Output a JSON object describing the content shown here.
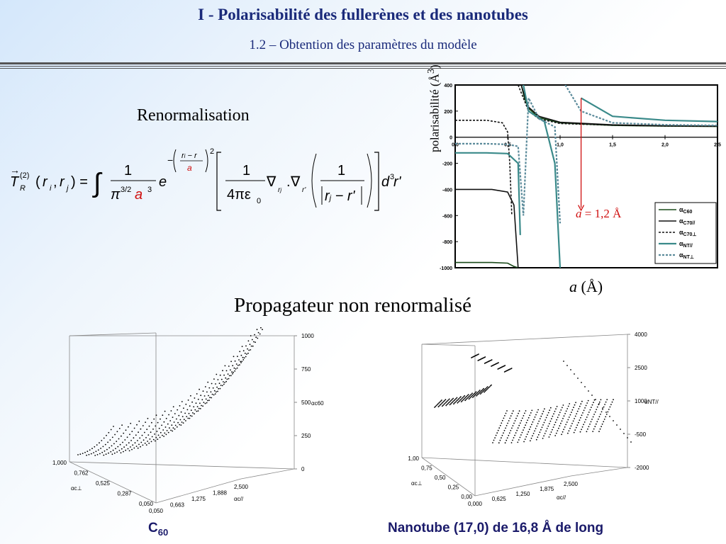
{
  "header": {
    "title": "I  - Polarisabilité des fullerènes et des nanotubes",
    "subtitle": "1.2 – Obtention des paramètres du modèle"
  },
  "left": {
    "renorm_label": "Renormalisation",
    "propagateur_label": "Propagateur non renormalisé",
    "formula": {
      "lhs_T": "T",
      "lhs_sup": "(2)",
      "lhs_sub": "R",
      "lhs_args": "(r",
      "int": "∫",
      "frac1_num": "1",
      "frac1_den_pi": "π",
      "frac1_den_exp": "3/2",
      "frac1_den_a": "a",
      "frac1_den_a_exp": "3",
      "exp_e": "e",
      "exp_minus": "−",
      "exp_frac_num": "r",
      "exp_frac_den": "a",
      "exp_power": "2",
      "frac2_num": "1",
      "frac2_den": "4πε",
      "frac2_den_sub": "0",
      "nabla": "∇",
      "frac3_num": "1",
      "d3r": "d",
      "d3r_exp": "3"
    }
  },
  "right_chart": {
    "ylabel": "polarisabilité (Å",
    "ylabel_sup": "3",
    "ylabel_close": ")",
    "xlabel_a": "a",
    "xlabel_unit": "(Å)",
    "annotation_a": "a",
    "annotation_value": "= 1,2 Å",
    "annotation_color": "#d01010",
    "legend": [
      {
        "sym": "α",
        "sub": "C60"
      },
      {
        "sym": "α",
        "sub": "C70//"
      },
      {
        "sym": "α",
        "sub": "C70⊥"
      },
      {
        "sym": "α",
        "sub": "NT//"
      },
      {
        "sym": "α",
        "sub": "NT⊥"
      }
    ]
  },
  "chart_data": [
    {
      "type": "line",
      "xlabel": "a (Å)",
      "ylabel": "polarisabilité (Å3)",
      "xlim": [
        0,
        2.5
      ],
      "ylim": [
        -1000,
        400
      ],
      "x_ticks": [
        "0,0",
        "0,5",
        "1,0",
        "1,5",
        "2,0",
        "2,5"
      ],
      "y_ticks": [
        "400",
        "200",
        "0",
        "-200",
        "-400",
        "-600",
        "-800",
        "-1000"
      ],
      "series": [
        {
          "name": "αC60",
          "color": "#1a4a1a",
          "style": "solid",
          "x": [
            0.0,
            0.35,
            0.5,
            0.56,
            0.6,
            0.63,
            0.66,
            0.7,
            0.8,
            1.0,
            1.5,
            2.0,
            2.5
          ],
          "y": [
            -960,
            -960,
            -965,
            -990,
            -1000,
            400,
            300,
            220,
            150,
            110,
            90,
            85,
            82
          ]
        },
        {
          "name": "αC70//",
          "color": "#111111",
          "style": "solid",
          "x": [
            0.0,
            0.35,
            0.5,
            0.56,
            0.6,
            0.63,
            0.66,
            0.7,
            0.8,
            1.0,
            1.5,
            2.0,
            2.5
          ],
          "y": [
            -400,
            -400,
            -420,
            -520,
            -1000,
            400,
            320,
            230,
            160,
            115,
            95,
            88,
            85
          ]
        },
        {
          "name": "αC70⊥",
          "color": "#111111",
          "style": "dotted",
          "x": [
            0.0,
            0.3,
            0.45,
            0.5,
            0.52,
            0.54,
            0.6,
            0.7,
            0.8,
            1.0,
            1.5,
            2.0,
            2.5
          ],
          "y": [
            130,
            130,
            110,
            40,
            -200,
            -600,
            400,
            200,
            140,
            105,
            92,
            86,
            84
          ]
        },
        {
          "name": "αNT//",
          "color": "#3a8a8a",
          "style": "solid",
          "x": [
            0.0,
            0.3,
            0.5,
            0.6,
            0.62,
            0.65,
            0.7,
            0.85,
            0.95,
            1.0,
            1.2,
            1.5,
            2.0,
            2.5
          ],
          "y": [
            -120,
            -120,
            -125,
            -200,
            -750,
            400,
            200,
            120,
            -200,
            -1000,
            300,
            160,
            130,
            120
          ]
        },
        {
          "name": "αNT⊥",
          "color": "#5a8a9a",
          "style": "dotted",
          "x": [
            0.0,
            0.3,
            0.5,
            0.6,
            0.65,
            0.7,
            0.8,
            0.95,
            1.0,
            1.05,
            1.2,
            1.5,
            2.0,
            2.5
          ],
          "y": [
            -50,
            -50,
            -55,
            -70,
            -600,
            300,
            140,
            80,
            -660,
            400,
            200,
            110,
            95,
            90
          ]
        }
      ],
      "annotation": {
        "text": "a = 1,2 Å",
        "x": 1.2
      }
    },
    {
      "type": "scatter",
      "subtype": "3d",
      "caption": "C60",
      "zlabel": "αc60",
      "z_ticks": [
        "1000",
        "750",
        "500",
        "250",
        "0"
      ],
      "x_label": "αc⊥",
      "x_ticks": [
        "1,000",
        "0,762",
        "0,525",
        "0,287",
        "0,050"
      ],
      "y_label": "αc//",
      "y_ticks": [
        "0,050",
        "0,663",
        "1,275",
        "1,888",
        "2,500"
      ]
    },
    {
      "type": "scatter",
      "subtype": "3d",
      "caption": "Nanotube (17,0) de 16,8 Å de long",
      "zlabel": "αNT//",
      "z_ticks": [
        "4000",
        "2500",
        "1000",
        "-500",
        "-2000"
      ],
      "x_label": "αc⊥",
      "x_ticks": [
        "1,00",
        "0,75",
        "0,50",
        "0,25",
        "0,00"
      ],
      "y_label": "αc//",
      "y_ticks": [
        "0,000",
        "0,625",
        "1,250",
        "1,875",
        "2,500"
      ]
    }
  ],
  "captions": {
    "left_main": "C",
    "left_sub": "60",
    "right": "Nanotube (17,0) de 16,8 Å de long"
  }
}
